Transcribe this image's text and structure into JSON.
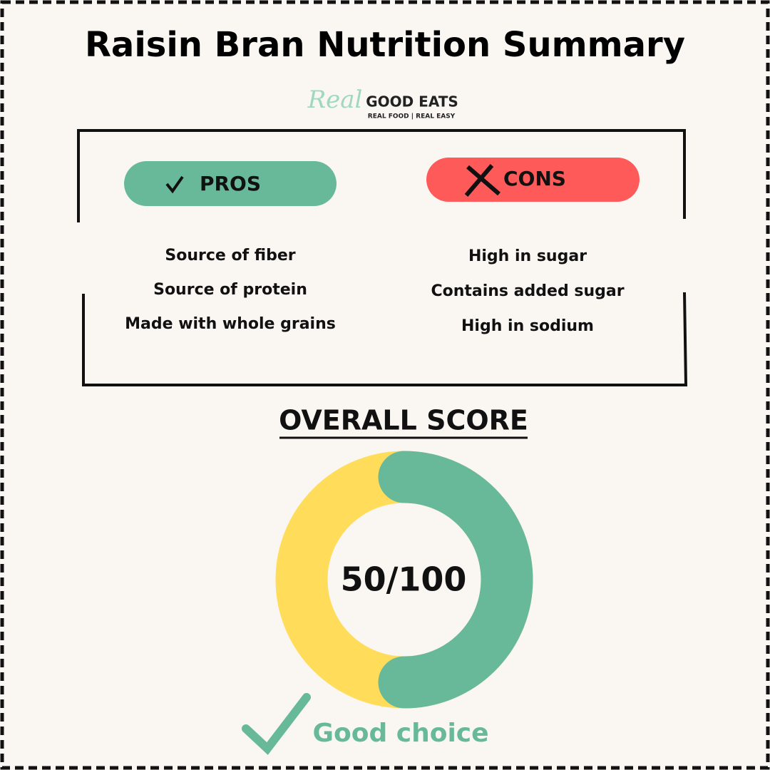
{
  "header": {
    "title": "Raisin Bran Nutrition Summary"
  },
  "logo": {
    "script": "Real",
    "name": "GOOD EATS",
    "tagline": "REAL FOOD | REAL EASY"
  },
  "pros": {
    "label": "PROS",
    "items": [
      "Source of fiber",
      "Source of protein",
      "Made with whole grains"
    ]
  },
  "cons": {
    "label": "CONS",
    "items": [
      "High in sugar",
      "Contains added sugar",
      "High in sodium"
    ]
  },
  "score": {
    "heading": "OVERALL SCORE",
    "label": "50/100",
    "value": 50,
    "max": 100
  },
  "verdict": "Good choice"
}
